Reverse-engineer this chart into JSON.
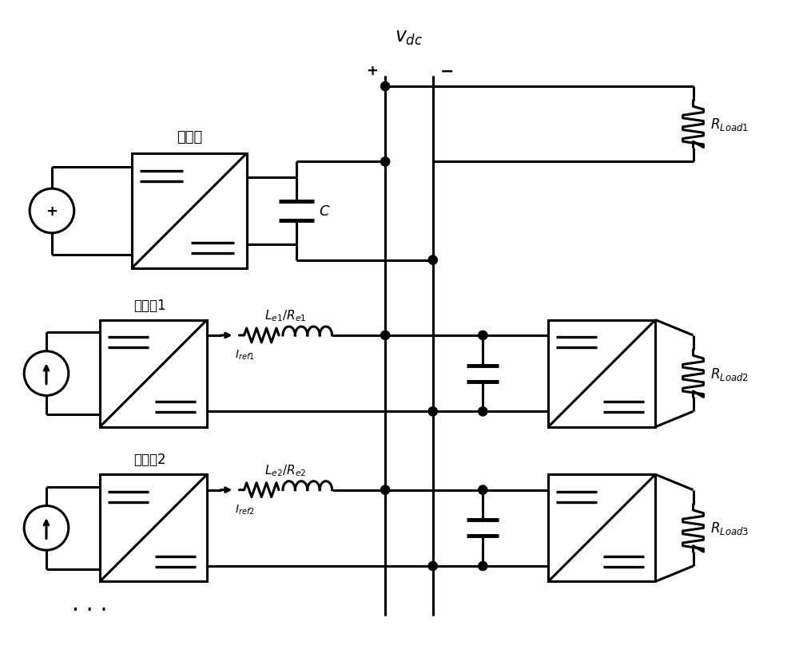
{
  "bg_color": "#ffffff",
  "line_color": "#000000",
  "line_width": 2.2,
  "fig_width": 10.0,
  "fig_height": 8.29,
  "vdc_label": "$v_{dc}$",
  "plus_label": "+",
  "minus_label": "−",
  "master_label": "主电源",
  "slave1_label": "从电源1",
  "slave2_label": "从电源2",
  "Le1_label": "$L_{e1}/R_{e1}$",
  "Le2_label": "$L_{e2}/R_{e2}$",
  "Iref1_label": "$I_{ref1}$",
  "Iref2_label": "$I_{ref2}$",
  "C_label": "$C$",
  "RLoad1_label": "$R_{Load1}$",
  "RLoad2_label": "$R_{Load2}$",
  "RLoad3_label": "$R_{Load3}$"
}
